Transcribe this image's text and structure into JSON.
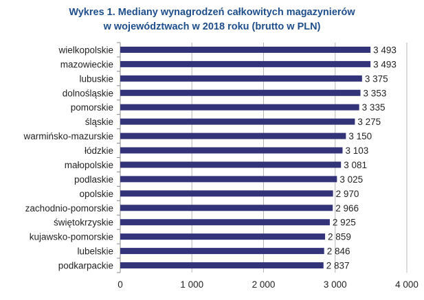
{
  "chart_data": {
    "type": "bar",
    "orientation": "horizontal",
    "title_lines": [
      "Wykres 1. Mediany wynagrodzeń całkowitych magazynierów",
      "w województwach w 2018 roku (brutto w PLN)"
    ],
    "categories": [
      "wielkopolskie",
      "mazowieckie",
      "lubuskie",
      "dolnośląskie",
      "pomorskie",
      "śląskie",
      "warmińsko-mazurskie",
      "łódzkie",
      "małopolskie",
      "podlaskie",
      "opolskie",
      "zachodnio-pomorskie",
      "świętokrzyskie",
      "kujawsko-pomorskie",
      "lubelskie",
      "podkarpackie"
    ],
    "values": [
      3493,
      3493,
      3375,
      3353,
      3335,
      3275,
      3150,
      3103,
      3081,
      3025,
      2970,
      2966,
      2925,
      2859,
      2846,
      2837
    ],
    "value_labels": [
      "3 493",
      "3 493",
      "3 375",
      "3 353",
      "3 335",
      "3 275",
      "3 150",
      "3 103",
      "3 081",
      "3 025",
      "2 970",
      "2 966",
      "2 925",
      "2 859",
      "2 846",
      "2 837"
    ],
    "xlim": [
      0,
      4000
    ],
    "x_ticks": [
      0,
      1000,
      2000,
      3000,
      4000
    ],
    "x_tick_labels": [
      "0",
      "1 000",
      "2 000",
      "3 000",
      "4 000"
    ],
    "grid": true,
    "bar_color": "#33337a",
    "grid_color": "#b5b5b5"
  }
}
